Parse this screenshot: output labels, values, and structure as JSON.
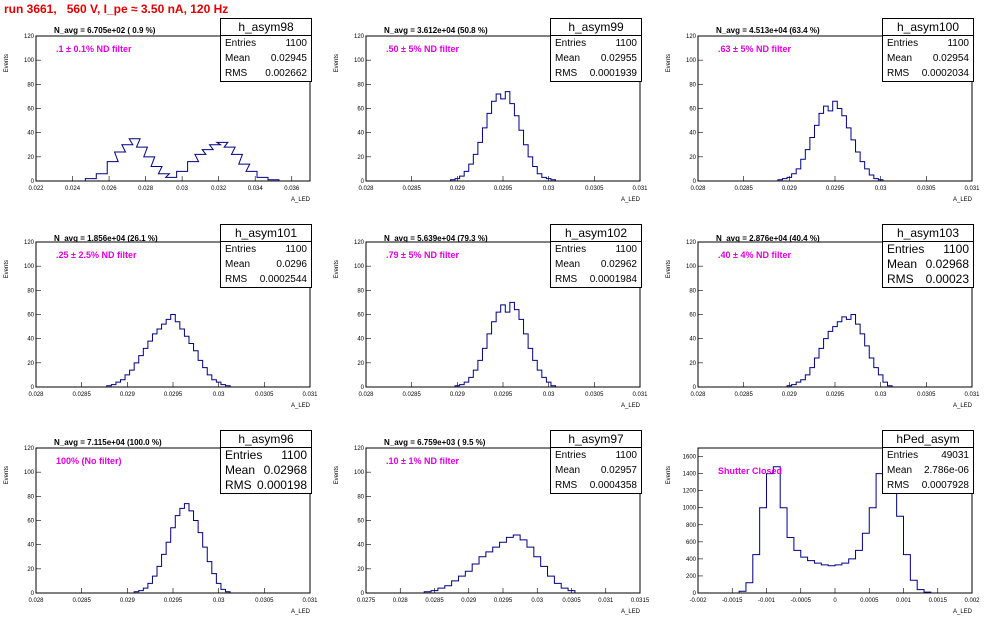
{
  "run_title": "run 3661,   560 V, I_pe ≈ 3.50 nA, 120 Hz",
  "axis": {
    "ylabel": "Events",
    "xlabel": "A_LED"
  },
  "stat_labels": {
    "entries": "Entries",
    "mean": "Mean",
    "rms": "RMS"
  },
  "chart_data": [
    {
      "type": "bar",
      "name": "h_asym98",
      "navg": "N_avg = 6.705e+02 ( 0.9 %)",
      "annotation": ".1 ± 0.1% ND filter",
      "stats": {
        "entries": "1100",
        "mean": "0.02945",
        "rms": "0.002662"
      },
      "xlim": [
        0.022,
        0.037
      ],
      "ylim": [
        0,
        120
      ],
      "xticks": [
        "0.022",
        "0.024",
        "0.026",
        "0.028",
        "0.03",
        "0.032",
        "0.034",
        "0.036"
      ],
      "xtick_values": [
        0.022,
        0.024,
        0.026,
        0.028,
        0.03,
        0.032,
        0.034,
        0.036
      ],
      "yticks": [
        "0",
        "20",
        "40",
        "60",
        "80",
        "100",
        "120"
      ],
      "x": [
        0.025,
        0.0256,
        0.0262,
        0.0266,
        0.027,
        0.0274,
        0.0278,
        0.0282,
        0.0286,
        0.029,
        0.0294,
        0.03,
        0.0306,
        0.031,
        0.0314,
        0.0318,
        0.0322,
        0.0326,
        0.033,
        0.0334,
        0.0338,
        0.0344,
        0.035
      ],
      "values": [
        2,
        6,
        16,
        24,
        30,
        35,
        28,
        20,
        12,
        6,
        3,
        8,
        16,
        22,
        26,
        30,
        32,
        28,
        22,
        14,
        8,
        3,
        1
      ]
    },
    {
      "type": "bar",
      "name": "h_asym99",
      "navg": "N_avg = 3.612e+04 (50.8 %)",
      "annotation": ".50 ± 5% ND filter",
      "stats": {
        "entries": "1100",
        "mean": "0.02955",
        "rms": "0.0001939"
      },
      "xlim": [
        0.028,
        0.031
      ],
      "ylim": [
        0,
        120
      ],
      "xticks": [
        "0.028",
        "0.0285",
        "0.029",
        "0.0295",
        "0.03",
        "0.0305",
        "0.031"
      ],
      "xtick_values": [
        0.028,
        0.0285,
        0.029,
        0.0295,
        0.03,
        0.0305,
        0.031
      ],
      "yticks": [
        "0",
        "20",
        "40",
        "60",
        "80",
        "100",
        "120"
      ],
      "x": [
        0.02895,
        0.029,
        0.02905,
        0.0291,
        0.02915,
        0.0292,
        0.02925,
        0.0293,
        0.02935,
        0.0294,
        0.02945,
        0.0295,
        0.02955,
        0.0296,
        0.02965,
        0.0297,
        0.02975,
        0.0298,
        0.02985,
        0.0299,
        0.02995,
        0.03,
        0.03005
      ],
      "values": [
        1,
        2,
        4,
        8,
        14,
        22,
        32,
        44,
        56,
        66,
        72,
        68,
        74,
        64,
        54,
        42,
        30,
        20,
        12,
        6,
        3,
        2,
        1
      ]
    },
    {
      "type": "bar",
      "name": "h_asym100",
      "navg": "N_avg = 4.513e+04 (63.4 %)",
      "annotation": ".63 ± 5% ND filter",
      "stats": {
        "entries": "1100",
        "mean": "0.02954",
        "rms": "0.0002034"
      },
      "xlim": [
        0.028,
        0.031
      ],
      "ylim": [
        0,
        120
      ],
      "xticks": [
        "0.028",
        "0.0285",
        "0.029",
        "0.0295",
        "0.03",
        "0.0305",
        "0.031"
      ],
      "xtick_values": [
        0.028,
        0.0285,
        0.029,
        0.0295,
        0.03,
        0.0305,
        0.031
      ],
      "yticks": [
        "0",
        "20",
        "40",
        "60",
        "80",
        "100",
        "120"
      ],
      "x": [
        0.0289,
        0.02895,
        0.029,
        0.02905,
        0.0291,
        0.02915,
        0.0292,
        0.02925,
        0.0293,
        0.02935,
        0.0294,
        0.02945,
        0.0295,
        0.02955,
        0.0296,
        0.02965,
        0.0297,
        0.02975,
        0.0298,
        0.02985,
        0.0299,
        0.02995,
        0.03
      ],
      "values": [
        1,
        2,
        3,
        6,
        10,
        18,
        26,
        36,
        46,
        56,
        62,
        58,
        66,
        60,
        54,
        44,
        34,
        24,
        16,
        10,
        5,
        2,
        1
      ]
    },
    {
      "type": "bar",
      "name": "h_asym101",
      "navg": "N_avg = 1.856e+04 (26.1 %)",
      "annotation": ".25 ± 2.5% ND filter",
      "stats": {
        "entries": "1100",
        "mean": "0.0296",
        "rms": "0.0002544"
      },
      "xlim": [
        0.028,
        0.031
      ],
      "ylim": [
        0,
        120
      ],
      "xticks": [
        "0.028",
        "0.0285",
        "0.029",
        "0.0295",
        "0.03",
        "0.0305",
        "0.031"
      ],
      "xtick_values": [
        0.028,
        0.0285,
        0.029,
        0.0295,
        0.03,
        0.0305,
        0.031
      ],
      "yticks": [
        "0",
        "20",
        "40",
        "60",
        "80",
        "100",
        "120"
      ],
      "x": [
        0.0288,
        0.02885,
        0.0289,
        0.02895,
        0.029,
        0.02905,
        0.0291,
        0.02915,
        0.0292,
        0.02925,
        0.0293,
        0.02935,
        0.0294,
        0.02945,
        0.0295,
        0.02955,
        0.0296,
        0.02965,
        0.0297,
        0.02975,
        0.0298,
        0.02985,
        0.0299,
        0.02995,
        0.03,
        0.03005,
        0.0301
      ],
      "values": [
        1,
        2,
        4,
        6,
        10,
        14,
        20,
        26,
        32,
        38,
        44,
        48,
        52,
        56,
        60,
        54,
        48,
        42,
        36,
        30,
        22,
        16,
        10,
        6,
        4,
        2,
        1
      ]
    },
    {
      "type": "bar",
      "name": "h_asym102",
      "navg": "N_avg = 5.639e+04 (79.3 %)",
      "annotation": ".79 ± 5% ND filter",
      "stats": {
        "entries": "1100",
        "mean": "0.02962",
        "rms": "0.0001984"
      },
      "xlim": [
        0.028,
        0.031
      ],
      "ylim": [
        0,
        120
      ],
      "xticks": [
        "0.028",
        "0.0285",
        "0.029",
        "0.0295",
        "0.03",
        "0.0305",
        "0.031"
      ],
      "xtick_values": [
        0.028,
        0.0285,
        0.029,
        0.0295,
        0.03,
        0.0305,
        0.031
      ],
      "yticks": [
        "0",
        "20",
        "40",
        "60",
        "80",
        "100",
        "120"
      ],
      "x": [
        0.029,
        0.02905,
        0.0291,
        0.02915,
        0.0292,
        0.02925,
        0.0293,
        0.02935,
        0.0294,
        0.02945,
        0.0295,
        0.02955,
        0.0296,
        0.02965,
        0.0297,
        0.02975,
        0.0298,
        0.02985,
        0.0299,
        0.02995,
        0.03,
        0.03005
      ],
      "values": [
        1,
        2,
        4,
        8,
        14,
        22,
        32,
        44,
        54,
        62,
        68,
        62,
        70,
        64,
        56,
        44,
        32,
        22,
        14,
        8,
        4,
        1
      ]
    },
    {
      "type": "bar",
      "name": "h_asym103",
      "navg": "N_avg = 2.876e+04 (40.4 %)",
      "annotation": ".40 ± 4% ND filter",
      "stats": {
        "entries": "1100",
        "mean": "0.02968",
        "rms": "0.00023"
      },
      "xlim": [
        0.028,
        0.031
      ],
      "ylim": [
        0,
        120
      ],
      "xticks": [
        "0.028",
        "0.0285",
        "0.029",
        "0.0295",
        "0.03",
        "0.0305",
        "0.031"
      ],
      "xtick_values": [
        0.028,
        0.0285,
        0.029,
        0.0295,
        0.03,
        0.0305,
        0.031
      ],
      "yticks": [
        "0",
        "20",
        "40",
        "60",
        "80",
        "100",
        "120"
      ],
      "x": [
        0.029,
        0.02905,
        0.0291,
        0.02915,
        0.0292,
        0.02925,
        0.0293,
        0.02935,
        0.0294,
        0.02945,
        0.0295,
        0.02955,
        0.0296,
        0.02965,
        0.0297,
        0.02975,
        0.0298,
        0.02985,
        0.0299,
        0.02995,
        0.03,
        0.03005,
        0.0301
      ],
      "values": [
        1,
        2,
        4,
        6,
        10,
        16,
        24,
        32,
        40,
        46,
        50,
        54,
        58,
        56,
        60,
        52,
        44,
        34,
        24,
        16,
        10,
        4,
        1
      ]
    },
    {
      "type": "bar",
      "name": "h_asym96",
      "navg": "N_avg = 7.115e+04 (100.0 %)",
      "annotation": "100% (No filter)",
      "stats": {
        "entries": "1100",
        "mean": "0.02968",
        "rms": "0.000198"
      },
      "xlim": [
        0.028,
        0.031
      ],
      "ylim": [
        0,
        120
      ],
      "xticks": [
        "0.028",
        "0.0285",
        "0.029",
        "0.0295",
        "0.03",
        "0.0305",
        "0.031"
      ],
      "xtick_values": [
        0.028,
        0.0285,
        0.029,
        0.0295,
        0.03,
        0.0305,
        0.031
      ],
      "yticks": [
        "0",
        "20",
        "40",
        "60",
        "80",
        "100",
        "120"
      ],
      "x": [
        0.0291,
        0.02915,
        0.0292,
        0.02925,
        0.0293,
        0.02935,
        0.0294,
        0.02945,
        0.0295,
        0.02955,
        0.0296,
        0.02965,
        0.0297,
        0.02975,
        0.0298,
        0.02985,
        0.0299,
        0.02995,
        0.03,
        0.03005,
        0.0301
      ],
      "values": [
        1,
        2,
        4,
        8,
        14,
        22,
        32,
        42,
        54,
        64,
        70,
        74,
        68,
        60,
        50,
        38,
        26,
        16,
        8,
        3,
        1
      ]
    },
    {
      "type": "bar",
      "name": "h_asym97",
      "navg": "N_avg = 6.759e+03 ( 9.5 %)",
      "annotation": ".10 ± 1% ND filter",
      "stats": {
        "entries": "1100",
        "mean": "0.02957",
        "rms": "0.0004358"
      },
      "xlim": [
        0.0275,
        0.0315
      ],
      "ylim": [
        0,
        120
      ],
      "xticks": [
        "0.0275",
        "0.028",
        "0.0285",
        "0.029",
        "0.0295",
        "0.03",
        "0.0305",
        "0.031",
        "0.0315"
      ],
      "xtick_values": [
        0.0275,
        0.028,
        0.0285,
        0.029,
        0.0295,
        0.03,
        0.0305,
        0.031,
        0.0315
      ],
      "yticks": [
        "0",
        "20",
        "40",
        "60",
        "80",
        "100",
        "120"
      ],
      "x": [
        0.0284,
        0.0285,
        0.0286,
        0.0287,
        0.0288,
        0.0289,
        0.029,
        0.0291,
        0.0292,
        0.0293,
        0.0294,
        0.0295,
        0.0296,
        0.0297,
        0.0298,
        0.0299,
        0.03,
        0.0301,
        0.0302,
        0.0303,
        0.0304,
        0.0305
      ],
      "values": [
        1,
        2,
        4,
        6,
        10,
        14,
        18,
        24,
        30,
        34,
        38,
        42,
        46,
        48,
        44,
        38,
        30,
        22,
        14,
        8,
        4,
        2
      ]
    },
    {
      "type": "bar",
      "name": "hPed_asym",
      "navg": "",
      "annotation": "Shutter Closed",
      "stats": {
        "entries": "49031",
        "mean": "2.786e-06",
        "rms": "0.0007928"
      },
      "xlim": [
        -0.002,
        0.002
      ],
      "ylim": [
        0,
        1700
      ],
      "xticks": [
        "-0.002",
        "-0.0015",
        "-0.001",
        "-0.0005",
        "0",
        "0.0005",
        "0.001",
        "0.0015",
        "0.002"
      ],
      "xtick_values": [
        -0.002,
        -0.0015,
        -0.001,
        -0.0005,
        0,
        0.0005,
        0.001,
        0.0015,
        0.002
      ],
      "yticks": [
        "0",
        "200",
        "400",
        "600",
        "800",
        "1000",
        "1200",
        "1400",
        "1600"
      ],
      "x": [
        -0.00135,
        -0.00125,
        -0.00115,
        -0.00105,
        -0.00095,
        -0.00085,
        -0.00075,
        -0.00065,
        -0.00055,
        -0.00045,
        -0.00035,
        -0.00025,
        -0.00015,
        -5e-05,
        5e-05,
        0.00015,
        0.00025,
        0.00035,
        0.00045,
        0.00055,
        0.00065,
        0.00075,
        0.00085,
        0.00095,
        0.00105,
        0.00115,
        0.00125,
        0.00135
      ],
      "values": [
        20,
        120,
        450,
        1000,
        1400,
        1480,
        1000,
        650,
        500,
        420,
        380,
        350,
        330,
        320,
        330,
        350,
        400,
        500,
        700,
        1000,
        1400,
        1560,
        1450,
        900,
        450,
        150,
        40,
        10
      ]
    }
  ]
}
